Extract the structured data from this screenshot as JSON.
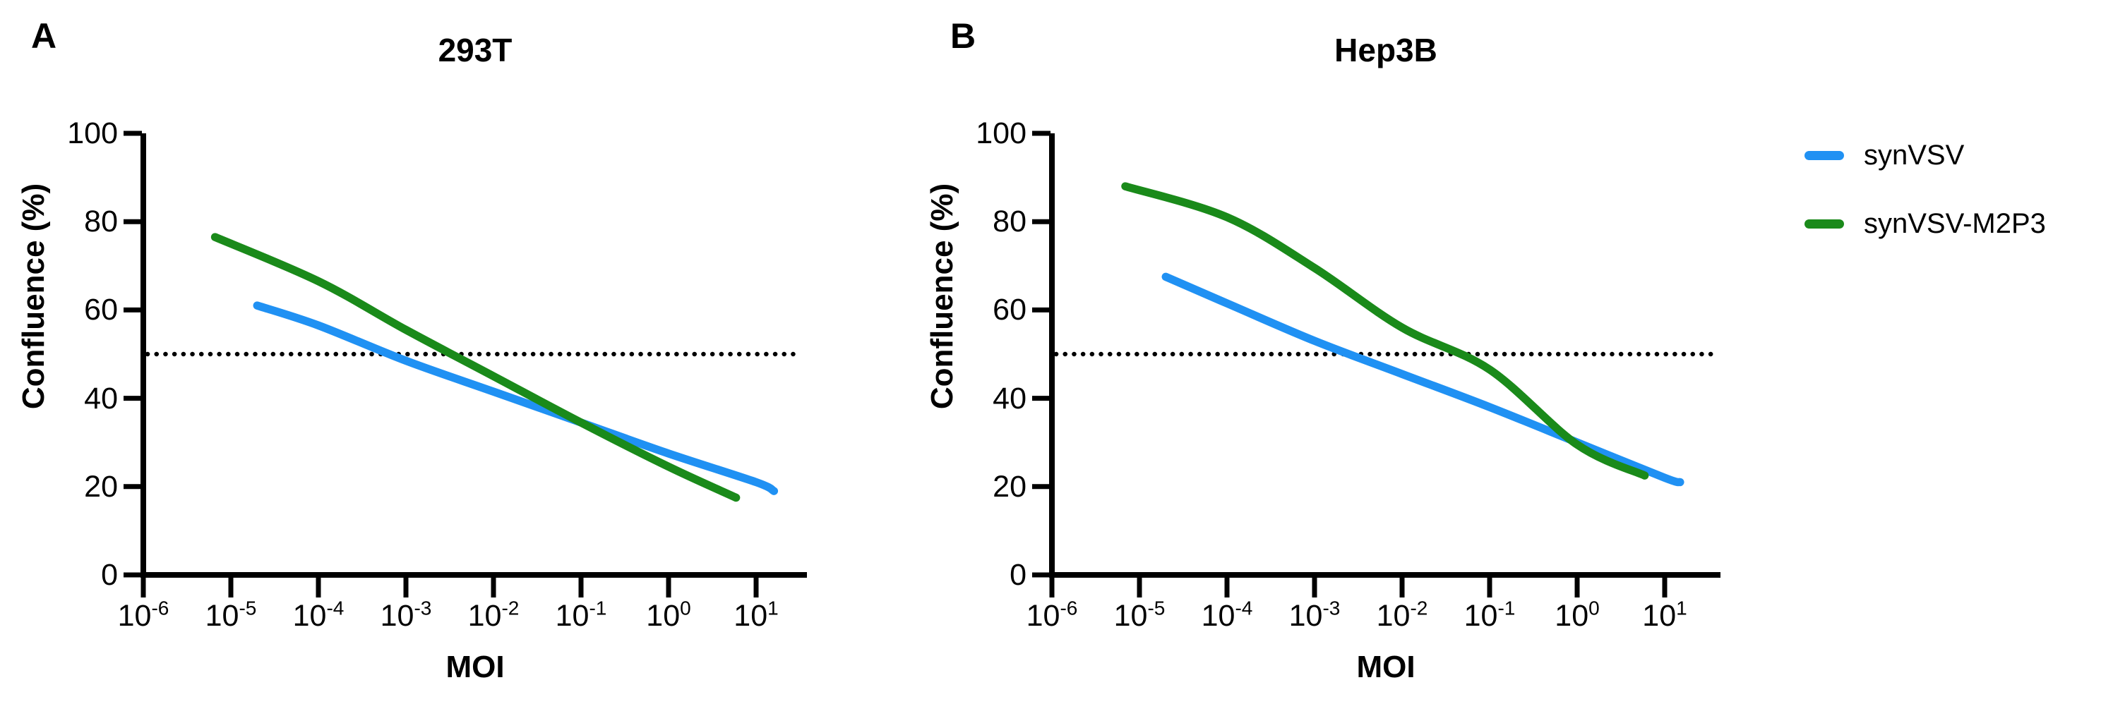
{
  "figure": {
    "background": "#ffffff",
    "axis_color": "#000000",
    "panels": [
      {
        "letter": "A",
        "title": "293T",
        "xlabel": "MOI",
        "ylabel": "Confluence (%)"
      },
      {
        "letter": "B",
        "title": "Hep3B",
        "xlabel": "MOI",
        "ylabel": "Confluence (%)"
      }
    ],
    "legend": {
      "items": [
        {
          "label": "synVSV",
          "color": "#2091F3"
        },
        {
          "label": "synVSV-M2P3",
          "color": "#1A8A1A"
        }
      ]
    }
  },
  "chart_data": [
    {
      "type": "line",
      "panel": "A",
      "title": "293T",
      "xlabel": "MOI",
      "ylabel": "Confluence (%)",
      "x_scale": "log10",
      "xlim_log10": [
        -6,
        1.6
      ],
      "ylim": [
        0,
        100
      ],
      "y_ticks": [
        0,
        20,
        40,
        60,
        80,
        100
      ],
      "x_tick_exponents": [
        -6,
        -5,
        -4,
        -3,
        -2,
        -1,
        0,
        1
      ],
      "grid": false,
      "legend_position": "outside-right",
      "reference_line": {
        "y": 50,
        "style": "dotted"
      },
      "series": [
        {
          "name": "synVSV",
          "color": "#2091F3",
          "points": [
            [
              2e-05,
              61
            ],
            [
              0.0001,
              56.5
            ],
            [
              0.001,
              48.5
            ],
            [
              0.01,
              41.5
            ],
            [
              0.1,
              34.5
            ],
            [
              1,
              27.5
            ],
            [
              10,
              21
            ],
            [
              16,
              19
            ]
          ]
        },
        {
          "name": "synVSV-M2P3",
          "color": "#1A8A1A",
          "points": [
            [
              6.6e-06,
              76.5
            ],
            [
              0.0001,
              66.5
            ],
            [
              0.001,
              55.5
            ],
            [
              0.01,
              45
            ],
            [
              0.1,
              34.5
            ],
            [
              1,
              24.5
            ],
            [
              5.9,
              17.5
            ]
          ]
        }
      ]
    },
    {
      "type": "line",
      "panel": "B",
      "title": "Hep3B",
      "xlabel": "MOI",
      "ylabel": "Confluence (%)",
      "x_scale": "log10",
      "xlim_log10": [
        -6,
        1.6
      ],
      "ylim": [
        0,
        100
      ],
      "y_ticks": [
        0,
        20,
        40,
        60,
        80,
        100
      ],
      "x_tick_exponents": [
        -6,
        -5,
        -4,
        -3,
        -2,
        -1,
        0,
        1
      ],
      "grid": false,
      "legend_position": "outside-right",
      "reference_line": {
        "y": 50,
        "style": "dotted"
      },
      "series": [
        {
          "name": "synVSV",
          "color": "#2091F3",
          "points": [
            [
              2e-05,
              67.5
            ],
            [
              0.0001,
              61.5
            ],
            [
              0.001,
              53
            ],
            [
              0.01,
              45.5
            ],
            [
              0.1,
              38
            ],
            [
              1,
              30
            ],
            [
              10,
              22
            ],
            [
              15,
              21
            ]
          ]
        },
        {
          "name": "synVSV-M2P3",
          "color": "#1A8A1A",
          "points": [
            [
              6.9e-06,
              88
            ],
            [
              0.0001,
              81
            ],
            [
              0.001,
              69.5
            ],
            [
              0.01,
              56
            ],
            [
              0.1,
              46.5
            ],
            [
              1,
              29.5
            ],
            [
              5.9,
              22.5
            ]
          ]
        }
      ]
    }
  ]
}
